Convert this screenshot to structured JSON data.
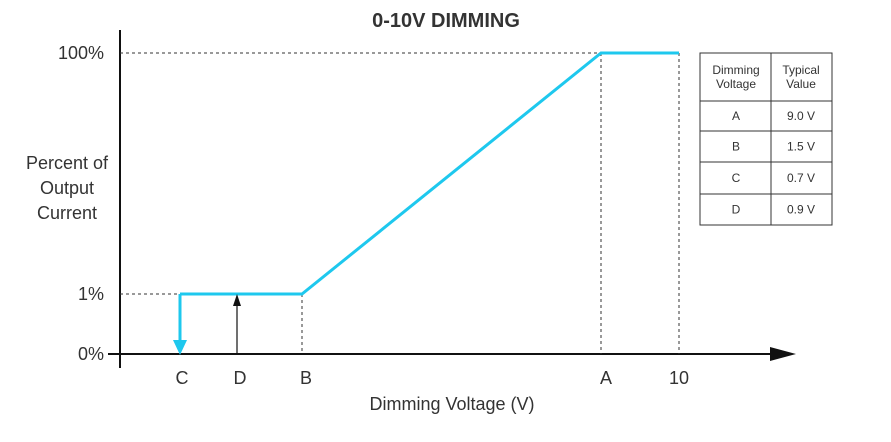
{
  "title": "0-10V DIMMING",
  "y_axis": {
    "title_lines": [
      "Percent of",
      "Output",
      "Current"
    ],
    "labels": [
      "100%",
      "1%",
      "0%"
    ]
  },
  "x_axis": {
    "title": "Dimming Voltage (V)",
    "labels": [
      "C",
      "D",
      "B",
      "A",
      "10"
    ]
  },
  "table": {
    "header": [
      [
        "Dimming",
        "Voltage"
      ],
      [
        "Typical",
        "Value"
      ]
    ],
    "rows": [
      [
        "A",
        "9.0 V"
      ],
      [
        "B",
        "1.5 V"
      ],
      [
        "C",
        "0.7 V"
      ],
      [
        "D",
        "0.9 V"
      ]
    ]
  }
}
